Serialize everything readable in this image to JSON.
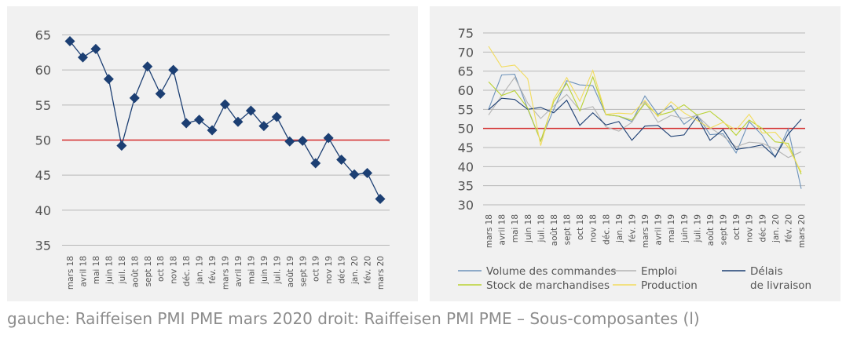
{
  "caption": "gauche: Raiffeisen PMI PME mars 2020 droit: Raiffeisen PMI PME – Sous-composantes (l)",
  "colors": {
    "panel_bg": "#f1f1f1",
    "grid": "#b7b7b7",
    "threshold": "#d42a2a",
    "pmi": "#1c3f73",
    "volume": "#6e93ba",
    "emploi": "#b4b4b4",
    "delais": "#1c3f73",
    "stock": "#b9d233",
    "production": "#f2dc5e"
  },
  "chart_data": [
    {
      "type": "line",
      "marker": "diamond",
      "categories": [
        "mars 18",
        "avril 18",
        "mai 18",
        "juin 18",
        "juil. 18",
        "août 18",
        "sept 18",
        "oct 18",
        "nov 18",
        "déc. 18",
        "jan. 19",
        "fév. 19",
        "mars 19",
        "avril 19",
        "mai 19",
        "juin 19",
        "juil. 19",
        "août 19",
        "sept 19",
        "oct 19",
        "nov 19",
        "déc 19",
        "jan. 20",
        "fév. 20",
        "mars 20"
      ],
      "y_ticks": [
        35,
        40,
        45,
        50,
        55,
        60,
        65
      ],
      "ylim": [
        35,
        65
      ],
      "threshold": 50,
      "grid": "horizontal",
      "series": [
        {
          "values": [
            64.1,
            61.8,
            63.0,
            58.7,
            49.2,
            56.0,
            60.5,
            56.6,
            60.0,
            52.4,
            52.9,
            51.4,
            55.1,
            52.6,
            54.2,
            52.0,
            53.3,
            49.8,
            49.9,
            46.7,
            50.3,
            47.2,
            45.1,
            45.3,
            41.6
          ]
        }
      ]
    },
    {
      "type": "line",
      "categories": [
        "mars 18",
        "avril 18",
        "mai 18",
        "juin 18",
        "juil. 18",
        "août 18",
        "sept 18",
        "oct 18",
        "nov 18",
        "déc. 18",
        "jan. 19",
        "fév. 19",
        "mars 19",
        "avril 19",
        "mai 19",
        "juin 19",
        "juil. 19",
        "août 19",
        "sept 19",
        "oct 19",
        "nov 19",
        "déc 19",
        "jan. 20",
        "fév. 20",
        "mars 20"
      ],
      "y_ticks": [
        30,
        35,
        40,
        45,
        50,
        55,
        60,
        65,
        70,
        75
      ],
      "ylim": [
        30,
        75
      ],
      "threshold": 50,
      "grid": "horizontal",
      "legend_position": "bottom",
      "series": [
        {
          "name": "Volume des commandes",
          "color_key": "volume",
          "values": [
            55.0,
            64.0,
            64.2,
            55.1,
            46.7,
            55.0,
            62.5,
            61.4,
            61.2,
            53.6,
            53.2,
            51.8,
            58.5,
            53.7,
            56.0,
            51.1,
            53.6,
            48.4,
            48.6,
            43.6,
            51.8,
            48.2,
            42.4,
            49.9,
            34.2
          ]
        },
        {
          "name": "Emploi",
          "color_key": "emploi",
          "values": [
            53.5,
            58.6,
            63.4,
            56.6,
            52.6,
            55.9,
            58.9,
            54.8,
            55.7,
            50.4,
            49.3,
            51.6,
            57.0,
            51.6,
            53.4,
            52.6,
            53.4,
            50.2,
            48.0,
            45.2,
            46.4,
            46.1,
            44.6,
            42.4,
            43.9
          ]
        },
        {
          "name": "Délais\nde livraison",
          "color_key": "delais",
          "values": [
            54.9,
            57.9,
            57.6,
            55.0,
            55.5,
            54.1,
            57.4,
            50.8,
            54.1,
            50.9,
            51.8,
            46.9,
            50.6,
            50.8,
            47.9,
            48.3,
            53.1,
            46.9,
            49.7,
            44.5,
            45.0,
            45.7,
            42.6,
            48.5,
            52.4
          ]
        },
        {
          "name": "Stock de marchandises",
          "color_key": "stock",
          "values": [
            62.2,
            58.6,
            59.9,
            55.3,
            46.7,
            57.0,
            61.8,
            54.6,
            63.5,
            53.6,
            53.2,
            52.2,
            56.5,
            53.4,
            54.3,
            56.2,
            53.5,
            54.5,
            51.8,
            48.2,
            52.2,
            50.0,
            46.5,
            46.1,
            38.0
          ]
        },
        {
          "name": "Production",
          "color_key": "production",
          "values": [
            71.5,
            66.1,
            66.6,
            63.0,
            45.5,
            57.7,
            63.3,
            57.1,
            65.2,
            53.7,
            54.0,
            53.8,
            57.3,
            53.1,
            57.0,
            54.1,
            52.1,
            50.1,
            51.6,
            49.6,
            53.7,
            48.8,
            49.0,
            45.1,
            38.6
          ]
        }
      ]
    }
  ]
}
